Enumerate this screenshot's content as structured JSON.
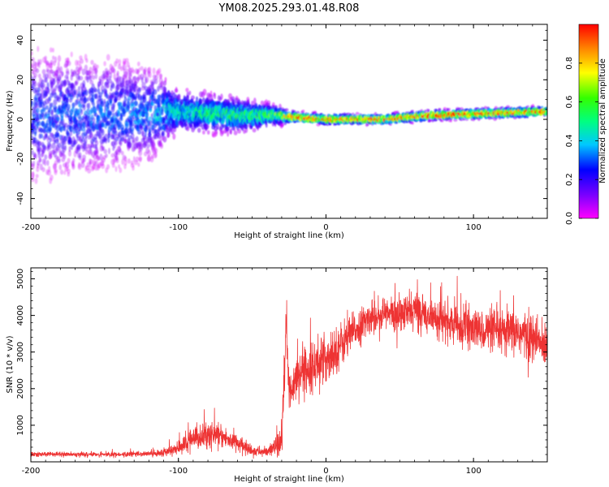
{
  "chart_data": [
    {
      "type": "heatmap",
      "title": "YM08.2025.293.01.48.R08",
      "xlabel": "Height of straight line (km)",
      "ylabel": "Frequency (Hz)",
      "xlim": [
        -200,
        150
      ],
      "ylim": [
        -50,
        48
      ],
      "x_ticks": [
        -200,
        -100,
        0,
        100
      ],
      "y_ticks": [
        -40,
        -20,
        0,
        20,
        40
      ],
      "colorbar": {
        "label": "Normalized spectral amplitude",
        "range": [
          0.0,
          1.0
        ],
        "ticks": [
          0.0,
          0.2,
          0.4,
          0.6,
          0.8
        ],
        "tick_labels": [
          "0.0",
          "0.2",
          "0.4",
          "0.6",
          "0.8"
        ]
      },
      "band_description": [
        {
          "x": -200,
          "center_hz": 2,
          "spread_hz": 25,
          "peak_amplitude": 0.3
        },
        {
          "x": -120,
          "center_hz": 3,
          "spread_hz": 18,
          "peak_amplitude": 0.35
        },
        {
          "x": -100,
          "center_hz": 4,
          "spread_hz": 8,
          "peak_amplitude": 0.5
        },
        {
          "x": -60,
          "center_hz": 2,
          "spread_hz": 7,
          "peak_amplitude": 0.55
        },
        {
          "x": -35,
          "center_hz": 2,
          "spread_hz": 4,
          "peak_amplitude": 0.6
        },
        {
          "x": -20,
          "center_hz": 1,
          "spread_hz": 2,
          "peak_amplitude": 0.95
        },
        {
          "x": 0,
          "center_hz": 0,
          "spread_hz": 2,
          "peak_amplitude": 0.95
        },
        {
          "x": 40,
          "center_hz": 0,
          "spread_hz": 2,
          "peak_amplitude": 0.9
        },
        {
          "x": 70,
          "center_hz": 2,
          "spread_hz": 2,
          "peak_amplitude": 0.95
        },
        {
          "x": 110,
          "center_hz": 3,
          "spread_hz": 2,
          "peak_amplitude": 0.95
        },
        {
          "x": 150,
          "center_hz": 4,
          "spread_hz": 2,
          "peak_amplitude": 0.95
        }
      ]
    },
    {
      "type": "line",
      "title": "",
      "xlabel": "Height of straight line (km)",
      "ylabel": "SNR (10 * v/v)",
      "xlim": [
        -200,
        150
      ],
      "ylim": [
        0,
        5300
      ],
      "x_ticks": [
        -200,
        -100,
        0,
        100
      ],
      "y_ticks": [
        1000,
        2000,
        3000,
        4000,
        5000
      ],
      "line_color": "#ee3333",
      "series": [
        {
          "name": "SNR",
          "x": [
            -200,
            -180,
            -160,
            -140,
            -120,
            -110,
            -100,
            -90,
            -80,
            -70,
            -60,
            -50,
            -40,
            -30,
            -28,
            -27,
            -25,
            -20,
            -10,
            0,
            10,
            20,
            30,
            40,
            50,
            60,
            70,
            80,
            90,
            100,
            110,
            120,
            130,
            140,
            150
          ],
          "values": [
            200,
            210,
            200,
            200,
            220,
            250,
            380,
            600,
            750,
            680,
            500,
            300,
            260,
            500,
            2400,
            3800,
            1800,
            2400,
            2600,
            2800,
            3200,
            3600,
            3950,
            4050,
            4000,
            4150,
            4000,
            3850,
            3700,
            3600,
            3600,
            3500,
            3550,
            3350,
            3150
          ],
          "noise_amplitude": [
            50,
            50,
            50,
            50,
            60,
            80,
            150,
            250,
            300,
            250,
            200,
            120,
            100,
            300,
            900,
            700,
            500,
            500,
            500,
            550,
            500,
            400,
            350,
            400,
            400,
            450,
            400,
            400,
            450,
            450,
            450,
            500,
            550,
            550,
            450
          ]
        }
      ]
    }
  ]
}
